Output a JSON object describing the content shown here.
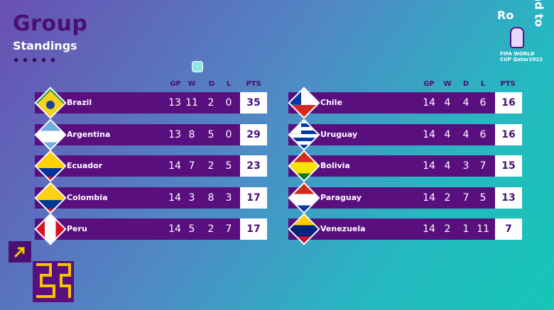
{
  "title": "Group",
  "subtitle": "Standings",
  "logo": {
    "line1": "Ro",
    "line2": "ad to",
    "caption": "FIFA WORLD CUP Qatar2022"
  },
  "columns": {
    "gp": "GP",
    "w": "W",
    "d": "D",
    "l": "L",
    "pts": "PTS"
  },
  "left_table": [
    {
      "team": "Brazil",
      "gp": "13",
      "w": "11",
      "d": "2",
      "l": "0",
      "pts": "35"
    },
    {
      "team": "Argentina",
      "gp": "13",
      "w": "8",
      "d": "5",
      "l": "0",
      "pts": "29"
    },
    {
      "team": "Ecuador",
      "gp": "14",
      "w": "7",
      "d": "2",
      "l": "5",
      "pts": "23"
    },
    {
      "team": "Colombia",
      "gp": "14",
      "w": "3",
      "d": "8",
      "l": "3",
      "pts": "17"
    },
    {
      "team": "Peru",
      "gp": "14",
      "w": "5",
      "d": "2",
      "l": "7",
      "pts": "17"
    }
  ],
  "right_table": [
    {
      "team": "Chile",
      "gp": "14",
      "w": "4",
      "d": "4",
      "l": "6",
      "pts": "16"
    },
    {
      "team": "Uruguay",
      "gp": "14",
      "w": "4",
      "d": "4",
      "l": "6",
      "pts": "16"
    },
    {
      "team": "Bolivia",
      "gp": "14",
      "w": "4",
      "d": "3",
      "l": "7",
      "pts": "15"
    },
    {
      "team": "Paraguay",
      "gp": "14",
      "w": "2",
      "d": "7",
      "l": "5",
      "pts": "13"
    },
    {
      "team": "Venezuela",
      "gp": "14",
      "w": "2",
      "d": "1",
      "l": "11",
      "pts": "7"
    }
  ]
}
